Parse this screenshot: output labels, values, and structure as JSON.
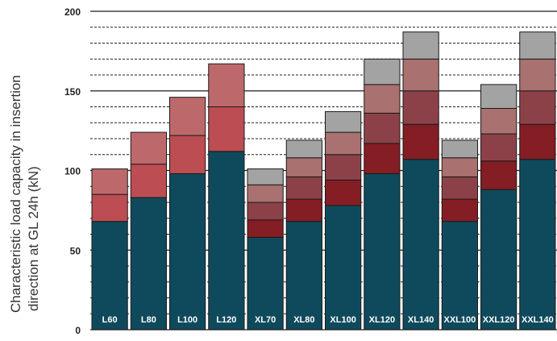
{
  "chart_data": {
    "type": "bar",
    "stacked": true,
    "ylabel_lines": [
      "Characteristic load capacity in insertion",
      "direction at GL 24h (kN)"
    ],
    "ylim": [
      0,
      200
    ],
    "y_ticks": [
      0,
      50,
      100,
      150,
      200
    ],
    "grid": "dashed every 10 kN, solid at 50, 100, 150 and 200",
    "categories": [
      "L60",
      "L80",
      "L100",
      "L120",
      "XL70",
      "XL80",
      "XL100",
      "XL120",
      "XL140",
      "XXL100",
      "XXL120",
      "XXL140"
    ],
    "segment_colors": [
      "#0f4a5c",
      "#841d24",
      "#bc4d52",
      "#8c4149",
      "#a9716f",
      "#bd696c",
      "#a3a3a3"
    ],
    "stacks": [
      [
        [
          68,
          "#0f4a5c"
        ],
        [
          17,
          "#bc4d52"
        ],
        [
          16,
          "#bd696c"
        ]
      ],
      [
        [
          83,
          "#0f4a5c"
        ],
        [
          21,
          "#bc4d52"
        ],
        [
          20,
          "#bd696c"
        ]
      ],
      [
        [
          98,
          "#0f4a5c"
        ],
        [
          24,
          "#bc4d52"
        ],
        [
          24,
          "#bd696c"
        ]
      ],
      [
        [
          112,
          "#0f4a5c"
        ],
        [
          28,
          "#bc4d52"
        ],
        [
          27,
          "#bd696c"
        ]
      ],
      [
        [
          58,
          "#0f4a5c"
        ],
        [
          11,
          "#841d24"
        ],
        [
          11,
          "#8c4149"
        ],
        [
          11,
          "#a9716f"
        ],
        [
          10,
          "#a3a3a3"
        ]
      ],
      [
        [
          68,
          "#0f4a5c"
        ],
        [
          14,
          "#841d24"
        ],
        [
          14,
          "#8c4149"
        ],
        [
          12,
          "#a9716f"
        ],
        [
          11,
          "#a3a3a3"
        ]
      ],
      [
        [
          78,
          "#0f4a5c"
        ],
        [
          16,
          "#841d24"
        ],
        [
          16,
          "#8c4149"
        ],
        [
          14,
          "#a9716f"
        ],
        [
          13,
          "#a3a3a3"
        ]
      ],
      [
        [
          98,
          "#0f4a5c"
        ],
        [
          19,
          "#841d24"
        ],
        [
          19,
          "#8c4149"
        ],
        [
          18,
          "#a9716f"
        ],
        [
          16,
          "#a3a3a3"
        ]
      ],
      [
        [
          107,
          "#0f4a5c"
        ],
        [
          22,
          "#841d24"
        ],
        [
          21,
          "#8c4149"
        ],
        [
          20,
          "#a9716f"
        ],
        [
          17,
          "#a3a3a3"
        ]
      ],
      [
        [
          68,
          "#0f4a5c"
        ],
        [
          14,
          "#841d24"
        ],
        [
          14,
          "#8c4149"
        ],
        [
          12,
          "#a9716f"
        ],
        [
          11,
          "#a3a3a3"
        ]
      ],
      [
        [
          88,
          "#0f4a5c"
        ],
        [
          18,
          "#841d24"
        ],
        [
          17,
          "#8c4149"
        ],
        [
          16,
          "#a9716f"
        ],
        [
          15,
          "#a3a3a3"
        ]
      ],
      [
        [
          107,
          "#0f4a5c"
        ],
        [
          22,
          "#841d24"
        ],
        [
          21,
          "#8c4149"
        ],
        [
          20,
          "#a9716f"
        ],
        [
          17,
          "#a3a3a3"
        ]
      ]
    ]
  }
}
